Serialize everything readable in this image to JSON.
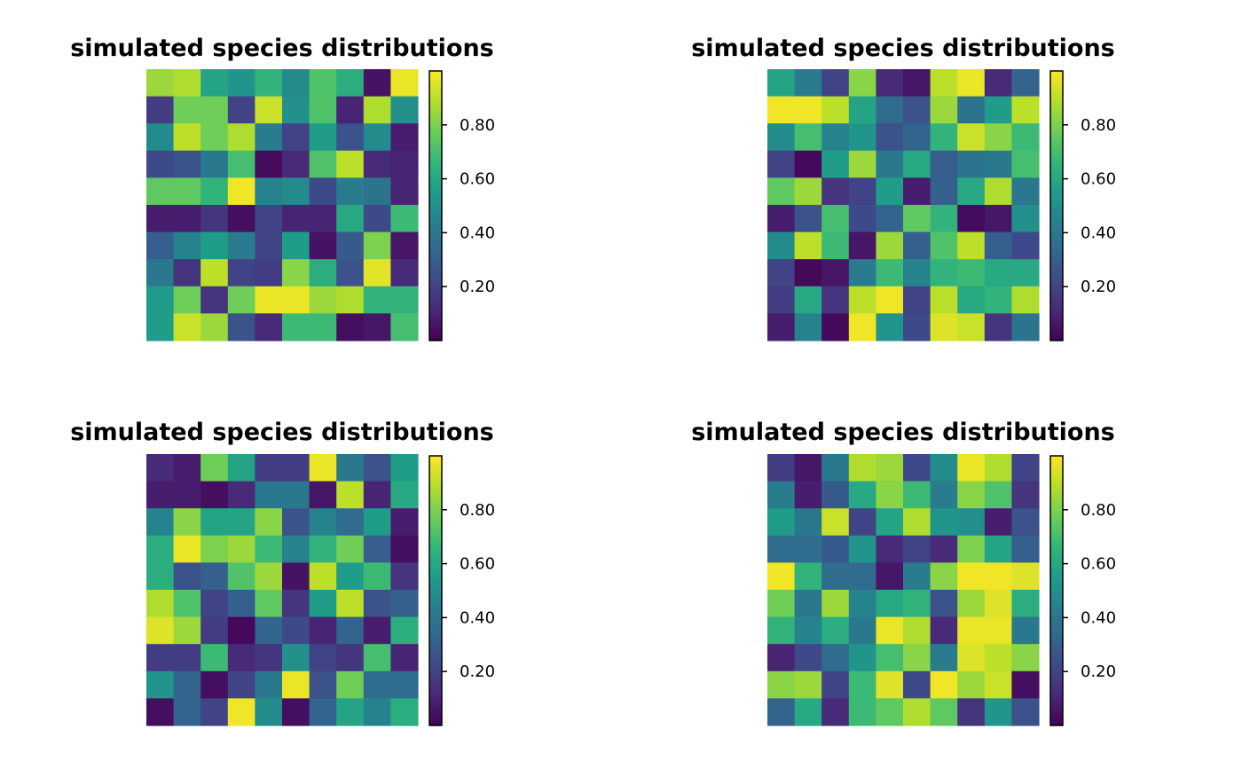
{
  "chart_data": [
    {
      "type": "heatmap",
      "title": "simulated species distributions",
      "colorbar": {
        "range": [
          0,
          1
        ],
        "ticks": [
          0.2,
          0.4,
          0.6,
          0.8
        ],
        "tick_labels": [
          "0.20",
          "0.40",
          "0.60",
          "0.80"
        ]
      },
      "colormap": [
        "#440154",
        "#482878",
        "#3e4a89",
        "#31688e",
        "#26828e",
        "#1f9e89",
        "#35b779",
        "#6ece58",
        "#b5de2b",
        "#fde725"
      ],
      "values": [
        [
          0.85,
          0.88,
          0.58,
          0.52,
          0.65,
          0.48,
          0.72,
          0.62,
          0.05,
          0.97
        ],
        [
          0.18,
          0.78,
          0.78,
          0.2,
          0.92,
          0.5,
          0.72,
          0.1,
          0.88,
          0.5
        ],
        [
          0.48,
          0.9,
          0.78,
          0.88,
          0.42,
          0.2,
          0.55,
          0.25,
          0.48,
          0.08
        ],
        [
          0.22,
          0.25,
          0.4,
          0.7,
          0.03,
          0.12,
          0.72,
          0.9,
          0.12,
          0.1
        ],
        [
          0.75,
          0.75,
          0.65,
          0.98,
          0.45,
          0.48,
          0.22,
          0.42,
          0.38,
          0.1
        ],
        [
          0.08,
          0.08,
          0.15,
          0.04,
          0.2,
          0.1,
          0.1,
          0.6,
          0.22,
          0.68
        ],
        [
          0.3,
          0.45,
          0.55,
          0.42,
          0.2,
          0.55,
          0.05,
          0.28,
          0.8,
          0.06
        ],
        [
          0.4,
          0.15,
          0.9,
          0.2,
          0.18,
          0.82,
          0.62,
          0.25,
          0.96,
          0.12
        ],
        [
          0.55,
          0.78,
          0.15,
          0.78,
          0.97,
          0.97,
          0.85,
          0.88,
          0.65,
          0.65
        ],
        [
          0.55,
          0.92,
          0.85,
          0.25,
          0.12,
          0.68,
          0.68,
          0.04,
          0.06,
          0.7
        ]
      ]
    },
    {
      "type": "heatmap",
      "title": "simulated species distributions",
      "colorbar": {
        "range": [
          0,
          1
        ],
        "ticks": [
          0.2,
          0.4,
          0.6,
          0.8
        ],
        "tick_labels": [
          "0.20",
          "0.40",
          "0.60",
          "0.80"
        ]
      },
      "colormap": [
        "#440154",
        "#482878",
        "#3e4a89",
        "#31688e",
        "#26828e",
        "#1f9e89",
        "#35b779",
        "#6ece58",
        "#b5de2b",
        "#fde725"
      ],
      "values": [
        [
          0.58,
          0.42,
          0.2,
          0.82,
          0.12,
          0.06,
          0.9,
          0.97,
          0.12,
          0.32
        ],
        [
          0.98,
          0.98,
          0.9,
          0.58,
          0.35,
          0.25,
          0.85,
          0.38,
          0.55,
          0.9
        ],
        [
          0.48,
          0.7,
          0.45,
          0.52,
          0.25,
          0.32,
          0.65,
          0.92,
          0.82,
          0.68
        ],
        [
          0.2,
          0.02,
          0.55,
          0.85,
          0.4,
          0.6,
          0.3,
          0.38,
          0.4,
          0.7
        ],
        [
          0.75,
          0.85,
          0.15,
          0.2,
          0.55,
          0.08,
          0.3,
          0.6,
          0.88,
          0.4
        ],
        [
          0.08,
          0.25,
          0.7,
          0.22,
          0.32,
          0.75,
          0.65,
          0.03,
          0.06,
          0.5
        ],
        [
          0.48,
          0.9,
          0.68,
          0.06,
          0.85,
          0.3,
          0.72,
          0.9,
          0.3,
          0.22
        ],
        [
          0.2,
          0.02,
          0.06,
          0.42,
          0.68,
          0.45,
          0.65,
          0.68,
          0.6,
          0.6
        ],
        [
          0.18,
          0.6,
          0.15,
          0.9,
          0.98,
          0.2,
          0.9,
          0.6,
          0.65,
          0.88
        ],
        [
          0.08,
          0.45,
          0.02,
          0.98,
          0.52,
          0.22,
          0.95,
          0.92,
          0.15,
          0.38
        ]
      ]
    },
    {
      "type": "heatmap",
      "title": "simulated species distributions",
      "colorbar": {
        "range": [
          0,
          1
        ],
        "ticks": [
          0.2,
          0.4,
          0.6,
          0.8
        ],
        "tick_labels": [
          "0.20",
          "0.40",
          "0.60",
          "0.80"
        ]
      },
      "colormap": [
        "#440154",
        "#482878",
        "#3e4a89",
        "#31688e",
        "#26828e",
        "#1f9e89",
        "#35b779",
        "#6ece58",
        "#b5de2b",
        "#fde725"
      ],
      "values": [
        [
          0.12,
          0.08,
          0.78,
          0.58,
          0.18,
          0.18,
          0.97,
          0.4,
          0.25,
          0.55
        ],
        [
          0.08,
          0.08,
          0.04,
          0.12,
          0.4,
          0.4,
          0.06,
          0.9,
          0.1,
          0.6
        ],
        [
          0.45,
          0.82,
          0.58,
          0.58,
          0.82,
          0.25,
          0.45,
          0.35,
          0.55,
          0.08
        ],
        [
          0.62,
          0.97,
          0.8,
          0.85,
          0.68,
          0.45,
          0.65,
          0.78,
          0.3,
          0.04
        ],
        [
          0.62,
          0.25,
          0.3,
          0.72,
          0.85,
          0.05,
          0.9,
          0.55,
          0.68,
          0.15
        ],
        [
          0.88,
          0.72,
          0.2,
          0.3,
          0.75,
          0.15,
          0.55,
          0.9,
          0.25,
          0.3
        ],
        [
          0.95,
          0.85,
          0.18,
          0.02,
          0.32,
          0.22,
          0.1,
          0.32,
          0.08,
          0.62
        ],
        [
          0.18,
          0.18,
          0.68,
          0.12,
          0.15,
          0.5,
          0.2,
          0.15,
          0.7,
          0.1
        ],
        [
          0.52,
          0.32,
          0.04,
          0.2,
          0.4,
          0.97,
          0.25,
          0.78,
          0.35,
          0.35
        ],
        [
          0.04,
          0.32,
          0.2,
          0.98,
          0.48,
          0.04,
          0.32,
          0.58,
          0.45,
          0.62
        ]
      ]
    },
    {
      "type": "heatmap",
      "title": "simulated species distributions",
      "colorbar": {
        "range": [
          0,
          1
        ],
        "ticks": [
          0.2,
          0.4,
          0.6,
          0.8
        ],
        "tick_labels": [
          "0.20",
          "0.40",
          "0.60",
          "0.80"
        ]
      },
      "colormap": [
        "#440154",
        "#482878",
        "#3e4a89",
        "#31688e",
        "#26828e",
        "#1f9e89",
        "#35b779",
        "#6ece58",
        "#b5de2b",
        "#fde725"
      ],
      "values": [
        [
          0.18,
          0.06,
          0.4,
          0.88,
          0.85,
          0.22,
          0.48,
          0.97,
          0.88,
          0.2
        ],
        [
          0.42,
          0.08,
          0.28,
          0.6,
          0.82,
          0.68,
          0.42,
          0.82,
          0.72,
          0.15
        ],
        [
          0.55,
          0.4,
          0.92,
          0.2,
          0.58,
          0.88,
          0.52,
          0.5,
          0.08,
          0.25
        ],
        [
          0.35,
          0.35,
          0.28,
          0.52,
          0.12,
          0.2,
          0.12,
          0.8,
          0.58,
          0.3
        ],
        [
          0.98,
          0.65,
          0.35,
          0.35,
          0.06,
          0.42,
          0.82,
          0.98,
          0.98,
          0.95
        ],
        [
          0.78,
          0.4,
          0.85,
          0.45,
          0.6,
          0.65,
          0.25,
          0.85,
          0.95,
          0.62
        ],
        [
          0.65,
          0.45,
          0.62,
          0.4,
          0.97,
          0.88,
          0.12,
          0.97,
          0.97,
          0.4
        ],
        [
          0.1,
          0.22,
          0.35,
          0.52,
          0.7,
          0.82,
          0.42,
          0.95,
          0.9,
          0.82
        ],
        [
          0.82,
          0.85,
          0.2,
          0.68,
          0.95,
          0.22,
          0.98,
          0.85,
          0.92,
          0.04
        ],
        [
          0.32,
          0.6,
          0.12,
          0.68,
          0.75,
          0.88,
          0.75,
          0.15,
          0.52,
          0.25
        ]
      ]
    }
  ]
}
